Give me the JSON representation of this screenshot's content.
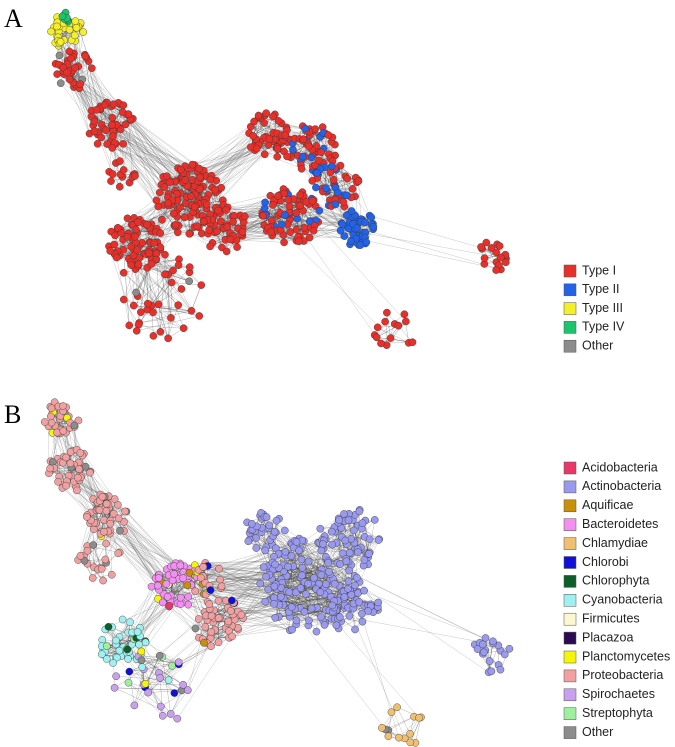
{
  "panel_a": {
    "label": "A",
    "legend": [
      {
        "name": "Type I",
        "color": "#e8302a"
      },
      {
        "name": "Type II",
        "color": "#2463e8"
      },
      {
        "name": "Type III",
        "color": "#f5ef2a"
      },
      {
        "name": "Type IV",
        "color": "#1ec36e"
      },
      {
        "name": "Other",
        "color": "#8c8c8c"
      }
    ]
  },
  "panel_b": {
    "label": "B",
    "legend": [
      {
        "name": "Acidobacteria",
        "color": "#e8386a"
      },
      {
        "name": "Actinobacteria",
        "color": "#9999ee"
      },
      {
        "name": "Aquificae",
        "color": "#c8900a"
      },
      {
        "name": "Bacteroidetes",
        "color": "#f28ff0"
      },
      {
        "name": "Chlamydiae",
        "color": "#f0c070"
      },
      {
        "name": "Chlorobi",
        "color": "#1010d8"
      },
      {
        "name": "Chlorophyta",
        "color": "#0e5e2a"
      },
      {
        "name": "Cyanobacteria",
        "color": "#9ff0f0"
      },
      {
        "name": "Firmicutes",
        "color": "#fbf7d0"
      },
      {
        "name": "Placazoa",
        "color": "#2a0a50"
      },
      {
        "name": "Planctomycetes",
        "color": "#f5f50a"
      },
      {
        "name": "Proteobacteria",
        "color": "#f0a0a0"
      },
      {
        "name": "Spirochaetes",
        "color": "#c8a0ee"
      },
      {
        "name": "Streptophyta",
        "color": "#9ef09e"
      },
      {
        "name": "Other",
        "color": "#8c8c8c"
      }
    ]
  }
}
